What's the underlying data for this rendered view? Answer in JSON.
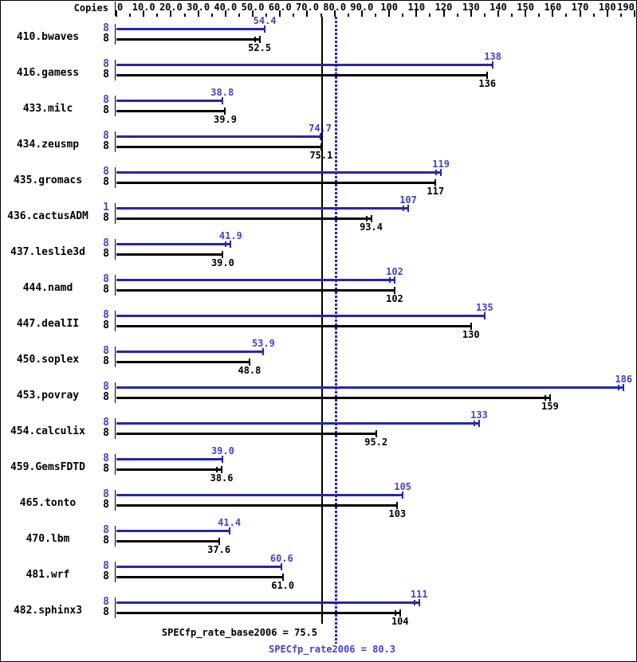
{
  "chart_data": {
    "type": "bar",
    "orientation": "horizontal",
    "copies_header": "Copies",
    "axis": {
      "min": 0,
      "max": 190,
      "major_step": 10,
      "minor_step": 5,
      "ticks": [
        {
          "value": 0,
          "label": "0"
        },
        {
          "value": 10,
          "label": "10.0"
        },
        {
          "value": 20,
          "label": "20.0"
        },
        {
          "value": 30,
          "label": "30.0"
        },
        {
          "value": 40,
          "label": "40.0"
        },
        {
          "value": 50,
          "label": "50.0"
        },
        {
          "value": 60,
          "label": "60.0"
        },
        {
          "value": 70,
          "label": "70.0"
        },
        {
          "value": 80,
          "label": "80.0"
        },
        {
          "value": 90,
          "label": "90.0"
        },
        {
          "value": 100,
          "label": "100"
        },
        {
          "value": 110,
          "label": "110"
        },
        {
          "value": 120,
          "label": "120"
        },
        {
          "value": 130,
          "label": "130"
        },
        {
          "value": 140,
          "label": "140"
        },
        {
          "value": 150,
          "label": "150"
        },
        {
          "value": 160,
          "label": "160"
        },
        {
          "value": 170,
          "label": "170"
        },
        {
          "value": 180,
          "label": "180"
        },
        {
          "value": 190,
          "label": "190"
        }
      ]
    },
    "benchmarks": [
      {
        "name": "410.bwaves",
        "peak": {
          "copies": "8",
          "value": 54.4,
          "display": "54.4",
          "cap": "single"
        },
        "base": {
          "copies": "8",
          "value": 52.5,
          "display": "52.5",
          "cap": "double"
        }
      },
      {
        "name": "416.gamess",
        "peak": {
          "copies": "8",
          "value": 138,
          "display": "138",
          "cap": "single"
        },
        "base": {
          "copies": "8",
          "value": 136,
          "display": "136",
          "cap": "single"
        }
      },
      {
        "name": "433.milc",
        "peak": {
          "copies": "8",
          "value": 38.8,
          "display": "38.8",
          "cap": "single"
        },
        "base": {
          "copies": "8",
          "value": 39.9,
          "display": "39.9",
          "cap": "single"
        }
      },
      {
        "name": "434.zeusmp",
        "peak": {
          "copies": "8",
          "value": 74.7,
          "display": "74.7",
          "cap": "single"
        },
        "base": {
          "copies": "8",
          "value": 75.1,
          "display": "75.1",
          "cap": "single"
        }
      },
      {
        "name": "435.gromacs",
        "peak": {
          "copies": "8",
          "value": 119,
          "display": "119",
          "cap": "double"
        },
        "base": {
          "copies": "8",
          "value": 117,
          "display": "117",
          "cap": "single"
        }
      },
      {
        "name": "436.cactusADM",
        "peak": {
          "copies": "1",
          "value": 107,
          "display": "107",
          "cap": "double"
        },
        "base": {
          "copies": "8",
          "value": 93.4,
          "display": "93.4",
          "cap": "double"
        }
      },
      {
        "name": "437.leslie3d",
        "peak": {
          "copies": "8",
          "value": 41.9,
          "display": "41.9",
          "cap": "double"
        },
        "base": {
          "copies": "8",
          "value": 39.0,
          "display": "39.0",
          "cap": "single"
        }
      },
      {
        "name": "444.namd",
        "peak": {
          "copies": "8",
          "value": 102,
          "display": "102",
          "cap": "double"
        },
        "base": {
          "copies": "8",
          "value": 102,
          "display": "102",
          "cap": "single"
        }
      },
      {
        "name": "447.dealII",
        "peak": {
          "copies": "8",
          "value": 135,
          "display": "135",
          "cap": "single"
        },
        "base": {
          "copies": "8",
          "value": 130,
          "display": "130",
          "cap": "single"
        }
      },
      {
        "name": "450.soplex",
        "peak": {
          "copies": "8",
          "value": 53.9,
          "display": "53.9",
          "cap": "single"
        },
        "base": {
          "copies": "8",
          "value": 48.8,
          "display": "48.8",
          "cap": "single"
        }
      },
      {
        "name": "453.povray",
        "peak": {
          "copies": "8",
          "value": 186,
          "display": "186",
          "cap": "double"
        },
        "base": {
          "copies": "8",
          "value": 159,
          "display": "159",
          "cap": "double"
        }
      },
      {
        "name": "454.calculix",
        "peak": {
          "copies": "8",
          "value": 133,
          "display": "133",
          "cap": "double"
        },
        "base": {
          "copies": "8",
          "value": 95.2,
          "display": "95.2",
          "cap": "single"
        }
      },
      {
        "name": "459.GemsFDTD",
        "peak": {
          "copies": "8",
          "value": 39.0,
          "display": "39.0",
          "cap": "single"
        },
        "base": {
          "copies": "8",
          "value": 38.6,
          "display": "38.6",
          "cap": "double"
        }
      },
      {
        "name": "465.tonto",
        "peak": {
          "copies": "8",
          "value": 105,
          "display": "105",
          "cap": "single"
        },
        "base": {
          "copies": "8",
          "value": 103,
          "display": "103",
          "cap": "single"
        }
      },
      {
        "name": "470.lbm",
        "peak": {
          "copies": "8",
          "value": 41.4,
          "display": "41.4",
          "cap": "single"
        },
        "base": {
          "copies": "8",
          "value": 37.6,
          "display": "37.6",
          "cap": "single"
        }
      },
      {
        "name": "481.wrf",
        "peak": {
          "copies": "8",
          "value": 60.6,
          "display": "60.6",
          "cap": "single"
        },
        "base": {
          "copies": "8",
          "value": 61.0,
          "display": "61.0",
          "cap": "single"
        }
      },
      {
        "name": "482.sphinx3",
        "peak": {
          "copies": "8",
          "value": 111,
          "display": "111",
          "cap": "double"
        },
        "base": {
          "copies": "8",
          "value": 104,
          "display": "104",
          "cap": "double"
        }
      }
    ],
    "reference_lines": [
      {
        "name": "base",
        "label": "SPECfp_rate_base2006 = 75.5",
        "value": 75.5,
        "style": "solid",
        "color": "#000000"
      },
      {
        "name": "peak",
        "label": "SPECfp_rate2006 = 80.3",
        "value": 80.3,
        "style": "dotted",
        "color": "#2626ad"
      }
    ],
    "colors": {
      "peak_bar": "#2626ad",
      "peak_text": "#4343cb",
      "base_bar": "#000000",
      "base_text": "#000000",
      "background": "#ffffff"
    }
  }
}
